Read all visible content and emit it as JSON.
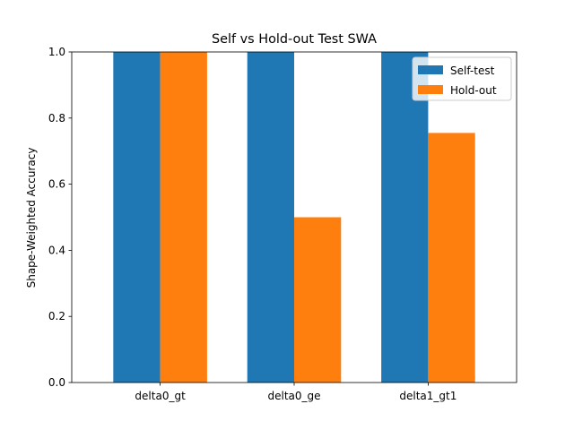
{
  "chart_data": {
    "type": "bar",
    "title": "Self vs Hold-out Test SWA",
    "xlabel": "",
    "ylabel": "Shape-Weighted Accuracy",
    "categories": [
      "delta0_gt",
      "delta0_ge",
      "delta1_gt1"
    ],
    "series": [
      {
        "name": "Self-test",
        "values": [
          1.0,
          1.0,
          1.0
        ],
        "color": "#1f77b4"
      },
      {
        "name": "Hold-out",
        "values": [
          1.0,
          0.5,
          0.755
        ],
        "color": "#ff7f0e"
      }
    ],
    "ylim": [
      0,
      1.0
    ],
    "yticks": [
      "0.0",
      "0.2",
      "0.4",
      "0.6",
      "0.8",
      "1.0"
    ],
    "grid": false,
    "legend_position": "top-right"
  }
}
